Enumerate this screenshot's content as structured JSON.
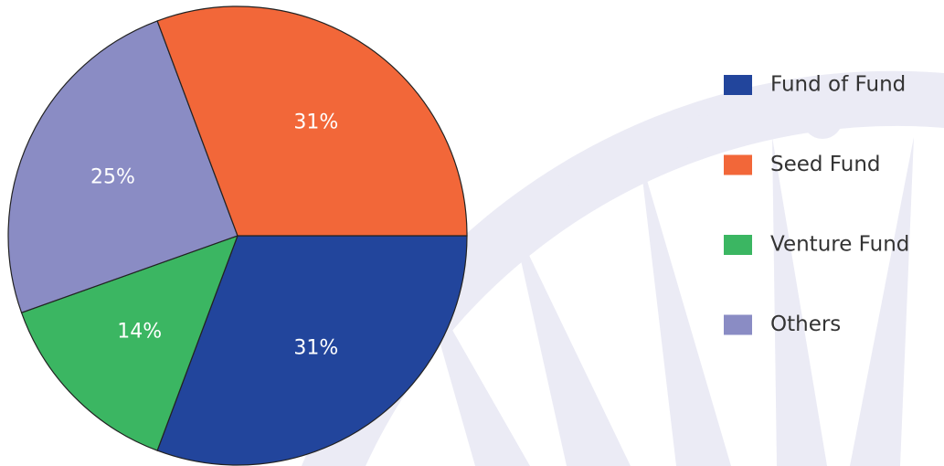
{
  "chart_data": {
    "type": "pie",
    "categories": [
      "Fund of Fund",
      "Seed Fund",
      "Venture Fund",
      "Others"
    ],
    "values": [
      31,
      31,
      14,
      25
    ],
    "value_labels": [
      "31%",
      "31%",
      "14%",
      "25%"
    ],
    "colors": [
      "#22459c",
      "#f26739",
      "#3bb662",
      "#8a8cc4"
    ],
    "legend": "right"
  }
}
